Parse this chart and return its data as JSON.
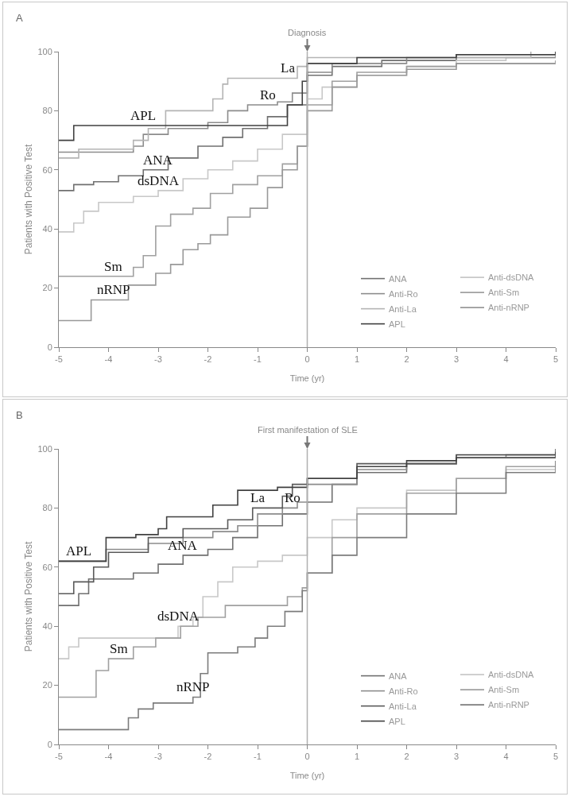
{
  "chart_data": [
    {
      "type": "step",
      "xlabel": "Time (yr)",
      "ylabel": "Patients with Positive Test",
      "xlim": [
        -5,
        5
      ],
      "xticks": [
        -5,
        -4,
        -3,
        -2,
        -1,
        0,
        1,
        2,
        3,
        4,
        5
      ],
      "ylim": [
        0,
        100
      ],
      "yticks": [
        0,
        20,
        40,
        60,
        80,
        100
      ],
      "grid": false,
      "legend": "bottom right",
      "marker": "none",
      "line_style": "solid",
      "ref_lines": [
        {
          "axis": "x",
          "value": 0,
          "label": "Diagnosis",
          "color": "#b0b0b0"
        }
      ],
      "annotations": [
        "A",
        {
          "text": "La",
          "x": -0.4,
          "y": 91
        },
        {
          "text": "Ro",
          "x": -0.8,
          "y": 82
        },
        {
          "text": "APL",
          "x": -3.3,
          "y": 75
        },
        {
          "text": "ANA",
          "x": -3.0,
          "y": 60
        },
        {
          "text": "dsDNA",
          "x": -3.0,
          "y": 53
        },
        {
          "text": "Sm",
          "x": -3.9,
          "y": 24
        },
        {
          "text": "nRNP",
          "x": -3.9,
          "y": 16
        }
      ],
      "series": [
        {
          "name": "ANA",
          "color": "#707070",
          "x": [
            -5,
            -4.7,
            -4.3,
            -3.8,
            -3.3,
            -2.8,
            -2.2,
            -1.7,
            -1.3,
            -0.8,
            -0.4,
            0,
            0.5,
            1.5,
            3,
            5
          ],
          "values": [
            53,
            55,
            56,
            58,
            60,
            64,
            68,
            71,
            74,
            78,
            82,
            92,
            95,
            97,
            99,
            100
          ]
        },
        {
          "name": "Anti-dsDNA",
          "color": "#c8c8c8",
          "x": [
            -5,
            -4.7,
            -4.5,
            -4.2,
            -3.5,
            -3,
            -2.5,
            -2,
            -1.5,
            -1,
            -0.5,
            0,
            0.3,
            1,
            2,
            3,
            4,
            5
          ],
          "values": [
            39,
            42,
            46,
            49,
            51,
            53,
            57,
            60,
            63,
            67,
            72,
            84,
            88,
            92,
            95,
            97,
            98,
            99
          ]
        },
        {
          "name": "Anti-Ro",
          "color": "#8c8c8c",
          "x": [
            -5,
            -3.5,
            -3.3,
            -2.8,
            -2,
            -1.6,
            -1.2,
            -0.6,
            -0.3,
            0,
            0.5,
            2,
            5
          ],
          "values": [
            66,
            68,
            72,
            74,
            76,
            80,
            82,
            83,
            86,
            93,
            96,
            98,
            99
          ]
        },
        {
          "name": "Anti-Sm",
          "color": "#a0a0a0",
          "x": [
            -5,
            -3.5,
            -3.3,
            -3.05,
            -2.75,
            -2.3,
            -1.95,
            -1.5,
            -1,
            -0.5,
            -0.2,
            0,
            0.5,
            1,
            2,
            3,
            5
          ],
          "values": [
            24,
            27,
            31,
            41,
            45,
            47,
            52,
            55,
            58,
            62,
            68,
            82,
            90,
            93,
            95,
            96,
            97
          ]
        },
        {
          "name": "Anti-La",
          "color": "#b4b4b4",
          "x": [
            -5,
            -4.6,
            -3.5,
            -3.2,
            -2.85,
            -2,
            -1.9,
            -1.7,
            -1.6,
            -0.4,
            -0.2,
            0,
            4.5
          ],
          "values": [
            64,
            67,
            70,
            74,
            80,
            80,
            84,
            89,
            91,
            91,
            95,
            98,
            100
          ]
        },
        {
          "name": "Anti-nRNP",
          "color": "#999999",
          "x": [
            -5,
            -4.35,
            -3.6,
            -3.05,
            -2.75,
            -2.5,
            -2.2,
            -1.95,
            -1.6,
            -1.15,
            -0.8,
            -0.5,
            -0.2,
            0,
            0.5,
            1,
            2,
            3,
            5
          ],
          "values": [
            9,
            16,
            21,
            25,
            28,
            33,
            35,
            38,
            44,
            47,
            54,
            60,
            68,
            80,
            88,
            92,
            94,
            96,
            97
          ]
        },
        {
          "name": "APL",
          "color": "#404040",
          "x": [
            -5,
            -4.7,
            -0.7,
            -0.4,
            -0.1,
            0,
            1,
            3,
            5
          ],
          "values": [
            70,
            75,
            75,
            82,
            90,
            96,
            98,
            99,
            100
          ]
        }
      ]
    },
    {
      "type": "step",
      "xlabel": "Time (yr)",
      "ylabel": "Patients with Positive Test",
      "xlim": [
        -5,
        5
      ],
      "xticks": [
        -5,
        -4,
        -3,
        -2,
        -1,
        0,
        1,
        2,
        3,
        4,
        5
      ],
      "ylim": [
        0,
        100
      ],
      "yticks": [
        0,
        20,
        40,
        60,
        80,
        100
      ],
      "grid": false,
      "legend": "bottom right",
      "marker": "none",
      "line_style": "solid",
      "ref_lines": [
        {
          "axis": "x",
          "value": 0,
          "label": "First manifestation of SLE",
          "color": "#b0b0b0"
        }
      ],
      "annotations": [
        "B",
        {
          "text": "La",
          "x": -1.0,
          "y": 80
        },
        {
          "text": "Ro",
          "x": -0.3,
          "y": 80
        },
        {
          "text": "APL",
          "x": -4.6,
          "y": 62
        },
        {
          "text": "ANA",
          "x": -2.5,
          "y": 64
        },
        {
          "text": "dsDNA",
          "x": -2.6,
          "y": 40
        },
        {
          "text": "Sm",
          "x": -3.8,
          "y": 29
        },
        {
          "text": "nRNP",
          "x": -2.3,
          "y": 16
        }
      ],
      "series": [
        {
          "name": "ANA",
          "color": "#707070",
          "x": [
            -5,
            -4.6,
            -4.4,
            -3.5,
            -3,
            -2.5,
            -2,
            -1.5,
            -1,
            -0.5,
            0,
            0.5,
            1,
            2,
            3,
            5
          ],
          "values": [
            47,
            51,
            56,
            58,
            61,
            64,
            66,
            70,
            74,
            78,
            82,
            88,
            92,
            95,
            97,
            98
          ]
        },
        {
          "name": "Anti-dsDNA",
          "color": "#c8c8c8",
          "x": [
            -5,
            -4.8,
            -4.6,
            -2.6,
            -2.3,
            -2.1,
            -1.8,
            -1.5,
            -1,
            -0.5,
            0,
            0.5,
            1,
            2,
            3,
            4,
            5
          ],
          "values": [
            29,
            33,
            36,
            40,
            43,
            50,
            55,
            60,
            62,
            64,
            70,
            76,
            80,
            86,
            90,
            93,
            95
          ]
        },
        {
          "name": "Anti-Ro",
          "color": "#8c8c8c",
          "x": [
            -5,
            -4.05,
            -3.2,
            -2.5,
            -1.9,
            -1.4,
            -1,
            -0.5,
            -0.2,
            0,
            1,
            2,
            3,
            4,
            5
          ],
          "values": [
            62,
            66,
            68,
            70,
            72,
            74,
            78,
            80,
            82,
            88,
            93,
            95,
            97,
            98,
            99
          ]
        },
        {
          "name": "Anti-Sm",
          "color": "#a0a0a0",
          "x": [
            -5,
            -4.25,
            -4,
            -3.5,
            -3.05,
            -2.55,
            -2.2,
            -1.65,
            -0.4,
            -0.1,
            0,
            0.5,
            1,
            2,
            3,
            4,
            5
          ],
          "values": [
            16,
            25,
            29,
            33,
            36,
            40,
            43,
            47,
            50,
            53,
            58,
            70,
            78,
            85,
            90,
            94,
            96
          ]
        },
        {
          "name": "Anti-La",
          "color": "#5a5a5a",
          "x": [
            -5,
            -4.7,
            -4.3,
            -4,
            -3.2,
            -2.5,
            -1.6,
            -1.1,
            -0.5,
            -0.3,
            0,
            1,
            3,
            5
          ],
          "values": [
            51,
            55,
            60,
            65,
            70,
            73,
            76,
            80,
            84,
            88,
            90,
            95,
            97,
            100
          ]
        },
        {
          "name": "Anti-nRNP",
          "color": "#7c7c7c",
          "x": [
            -5,
            -3.6,
            -3.4,
            -3.1,
            -2.3,
            -2.15,
            -2,
            -1.4,
            -1.05,
            -0.8,
            -0.45,
            -0.1,
            0,
            0.5,
            1,
            2,
            3,
            4,
            5
          ],
          "values": [
            5,
            9,
            12,
            14,
            16,
            24,
            31,
            33,
            36,
            40,
            45,
            52,
            58,
            64,
            70,
            78,
            85,
            92,
            96
          ]
        },
        {
          "name": "APL",
          "color": "#404040",
          "x": [
            -5,
            -4.05,
            -3.45,
            -3,
            -2.83,
            -1.9,
            -1.4,
            -0.6,
            0,
            1,
            2,
            3,
            5
          ],
          "values": [
            62,
            70,
            71,
            73,
            77,
            81,
            86,
            87,
            90,
            94,
            96,
            98,
            99
          ]
        }
      ]
    }
  ]
}
